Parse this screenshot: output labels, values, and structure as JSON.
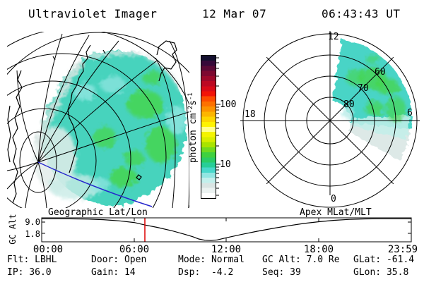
{
  "header": {
    "title": "Ultraviolet Imager",
    "date": "12 Mar 07",
    "time": "06:43:43 UT"
  },
  "colorbar": {
    "label_prefix": "photon cm",
    "label_sup1": "-2",
    "label_mid": "s",
    "label_sup2": "-1",
    "tick_labels": [
      "100",
      "10"
    ],
    "scale": "log",
    "colors": [
      "#14102f",
      "#37093a",
      "#5b0936",
      "#7d0931",
      "#9d092b",
      "#bc0923",
      "#d90b18",
      "#f21408",
      "#fd4c00",
      "#fd7100",
      "#fc9300",
      "#fcb500",
      "#fdd600",
      "#fef300",
      "#ffff8c",
      "#f4f400",
      "#d8ee00",
      "#a9e400",
      "#70da20",
      "#3fd13f",
      "#2bcc66",
      "#28ce97",
      "#49d8cb",
      "#92e6e2",
      "#c2efec",
      "#d9e4e3",
      "#ebf2f1",
      "#ffffff"
    ]
  },
  "geo_panel": {
    "caption": "Geographic Lat/Lon"
  },
  "polar_panel": {
    "caption": "Apex MLat/MLT",
    "mlt_top": "12",
    "mlt_left": "18",
    "mlt_right": "6",
    "mlt_bottom": "0",
    "mlat_rings": [
      "80",
      "70",
      "60"
    ]
  },
  "timeline": {
    "ylabel": "GC Alt",
    "yticks": [
      "9.0",
      "1.8"
    ],
    "xticks": [
      "00:00",
      "06:00",
      "12:00",
      "18:00",
      "23:59"
    ]
  },
  "footer": {
    "columns": [
      {
        "top": "Flt: LBHL",
        "bottom": "IP: 36.0"
      },
      {
        "top": "Door: Open",
        "bottom": "Gain: 14"
      },
      {
        "top": "Mode: Normal",
        "bottom": "Dsp:  -4.2"
      },
      {
        "top": "GC Alt: 7.0 Re",
        "bottom": "Seq: 39"
      },
      {
        "top": "GLat: -61.4",
        "bottom": "GLon: 35.8"
      }
    ]
  },
  "colors": {
    "time_marker_red": "#dd0000",
    "orbit_track_blue": "#2525cd",
    "emission_teal": "#47d3bd",
    "emission_green": "#44d64a",
    "emission_pale": "#dde9e7"
  },
  "chart_data": [
    {
      "type": "heatmap",
      "name": "uv-image-geographic",
      "title": "Geographic Lat/Lon",
      "units": "photon cm-2 s-1",
      "scale": "log",
      "colorbar_ticks": [
        100,
        10
      ],
      "description": "Diffuse UV dayglow disc over southern-hemisphere geographic grid; intensity mostly 5-30 photon cm-2 s-1 (teal/green), pale fringe near terminator at upper left and around the pole."
    },
    {
      "type": "heatmap",
      "name": "uv-image-apex",
      "title": "Apex MLat/MLT",
      "rings_mlat": [
        80,
        70,
        60,
        50
      ],
      "mlt_labels": [
        12,
        18,
        6,
        0
      ],
      "emission_sector_mlt": [
        0,
        6.5
      ],
      "emission_mlat_range": [
        50,
        80
      ],
      "description": "Same UV emission mapped to Apex magnetic latitude / MLT dial: teal-green patch filling the 00-06 MLT quadrant between 80 and 50 MLat, fading to pale grey past 06 MLT."
    },
    {
      "type": "line",
      "name": "gc-altitude-timeline",
      "ylabel": "GC Alt",
      "yticks": [
        9.0,
        1.8
      ],
      "ylim": [
        0.5,
        9.8
      ],
      "xtick_labels": [
        "00:00",
        "06:00",
        "12:00",
        "18:00",
        "23:59"
      ],
      "current_time_hours": 6.72,
      "x_hours": [
        0,
        1.5,
        3,
        4,
        5,
        6,
        6.72,
        7.5,
        8.5,
        9.3,
        9.8,
        10.2,
        10.6,
        11.0,
        11.4,
        12,
        13,
        14,
        15,
        16,
        17,
        18,
        19,
        20,
        21,
        22,
        23,
        23.98
      ],
      "y_re": [
        9.45,
        9.45,
        9.3,
        9.1,
        8.65,
        8.0,
        7.0,
        6.1,
        4.7,
        3.4,
        2.5,
        1.6,
        1.1,
        1.0,
        1.25,
        2.1,
        3.4,
        4.6,
        5.7,
        6.7,
        7.6,
        8.3,
        8.85,
        9.2,
        9.38,
        9.45,
        9.45,
        9.45
      ]
    }
  ]
}
